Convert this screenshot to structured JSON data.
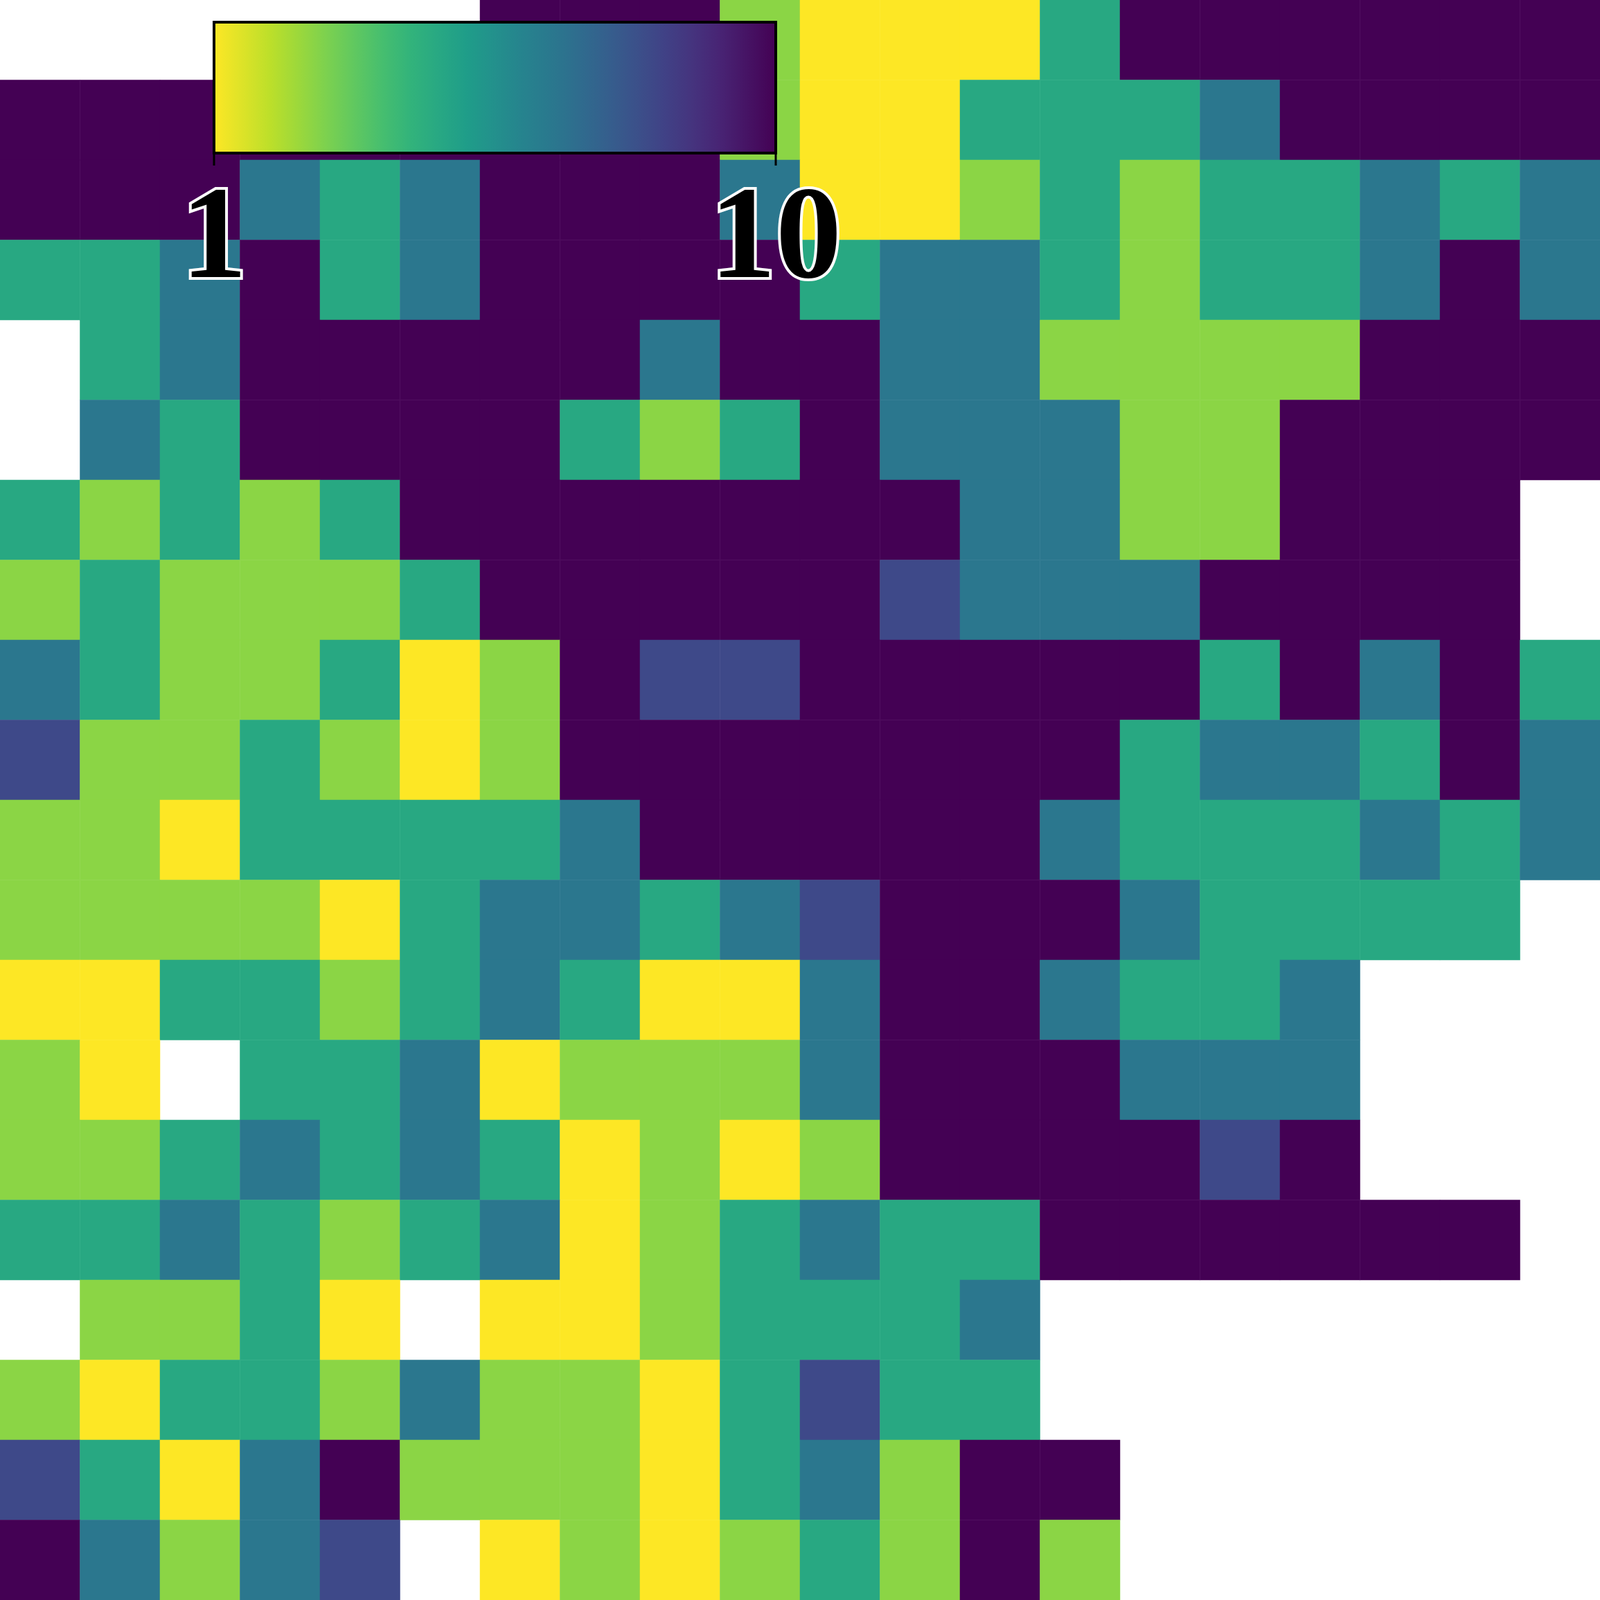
{
  "chart_data": {
    "type": "heatmap",
    "log": true,
    "tick_labels": false,
    "color_range": [
      1,
      10
    ],
    "color_ticks": [
      1,
      10
    ],
    "cells": [
      [
        null,
        null,
        null,
        null,
        null,
        null,
        10,
        10,
        10,
        1.5,
        1,
        1,
        1,
        2.5,
        10,
        10,
        10,
        10,
        10,
        10
      ],
      [
        10,
        10,
        10,
        10,
        10,
        10,
        10,
        10,
        10,
        1.5,
        1,
        1,
        2.5,
        2.5,
        2.5,
        4,
        10,
        10,
        10,
        10
      ],
      [
        10,
        10,
        10,
        4,
        2.5,
        4,
        10,
        10,
        10,
        4,
        1,
        1,
        1.5,
        2.5,
        1.5,
        2.5,
        2.5,
        4,
        2.5,
        4
      ],
      [
        2.5,
        2.5,
        4,
        10,
        2.5,
        4,
        10,
        10,
        10,
        10,
        2.5,
        4,
        4,
        2.5,
        1.5,
        2.5,
        2.5,
        4,
        10,
        4
      ],
      [
        null,
        2.5,
        4,
        10,
        10,
        10,
        10,
        10,
        4,
        10,
        10,
        4,
        4,
        1.5,
        1.5,
        1.5,
        1.5,
        10,
        10,
        10
      ],
      [
        null,
        4,
        2.5,
        10,
        10,
        10,
        10,
        2.5,
        1.5,
        2.5,
        10,
        4,
        4,
        4,
        1.5,
        1.5,
        10,
        10,
        10,
        10
      ],
      [
        2.5,
        1.5,
        2.5,
        1.5,
        2.5,
        10,
        10,
        10,
        10,
        10,
        10,
        10,
        4,
        4,
        1.5,
        1.5,
        10,
        10,
        10,
        null
      ],
      [
        1.5,
        2.5,
        1.5,
        1.5,
        1.5,
        2.5,
        10,
        10,
        10,
        10,
        10,
        6,
        4,
        4,
        4,
        10,
        10,
        10,
        10,
        null
      ],
      [
        4,
        2.5,
        1.5,
        1.5,
        2.5,
        1,
        1.5,
        10,
        6,
        6,
        10,
        10,
        10,
        10,
        10,
        2.5,
        10,
        4,
        10,
        2.5
      ],
      [
        6,
        1.5,
        1.5,
        2.5,
        1.5,
        1,
        1.5,
        10,
        10,
        10,
        10,
        10,
        10,
        10,
        2.5,
        4,
        4,
        2.5,
        10,
        4
      ],
      [
        1.5,
        1.5,
        1,
        2.5,
        2.5,
        2.5,
        2.5,
        4,
        10,
        10,
        10,
        10,
        10,
        4,
        2.5,
        2.5,
        2.5,
        4,
        2.5,
        4
      ],
      [
        1.5,
        1.5,
        1.5,
        1.5,
        1,
        2.5,
        4,
        4,
        2.5,
        4,
        6,
        10,
        10,
        10,
        4,
        2.5,
        2.5,
        2.5,
        2.5,
        null
      ],
      [
        1,
        1,
        2.5,
        2.5,
        1.5,
        2.5,
        4,
        2.5,
        1,
        1,
        4,
        10,
        10,
        4,
        2.5,
        2.5,
        4,
        null,
        null,
        null
      ],
      [
        1.5,
        1,
        null,
        2.5,
        2.5,
        4,
        1,
        1.5,
        1.5,
        1.5,
        4,
        10,
        10,
        10,
        4,
        4,
        4,
        null,
        null,
        null
      ],
      [
        1.5,
        1.5,
        2.5,
        4,
        2.5,
        4,
        2.5,
        1,
        1.5,
        1,
        1.5,
        10,
        10,
        10,
        10,
        6,
        10,
        null,
        null,
        null
      ],
      [
        2.5,
        2.5,
        4,
        2.5,
        1.5,
        2.5,
        4,
        1,
        1.5,
        2.5,
        4,
        2.5,
        2.5,
        10,
        10,
        10,
        10,
        10,
        10,
        null
      ],
      [
        null,
        1.5,
        1.5,
        2.5,
        1,
        null,
        1,
        1,
        1.5,
        2.5,
        2.5,
        2.5,
        4,
        null,
        null,
        null,
        null,
        null,
        null,
        null
      ],
      [
        1.5,
        1,
        2.5,
        2.5,
        1.5,
        4,
        1.5,
        1.5,
        1,
        2.5,
        6,
        2.5,
        2.5,
        null,
        null,
        null,
        null,
        null,
        null,
        null
      ],
      [
        6,
        2.5,
        1,
        4,
        10,
        1.5,
        1.5,
        1.5,
        1,
        2.5,
        4,
        1.5,
        10,
        10,
        null,
        null,
        null,
        null,
        null,
        null
      ],
      [
        10,
        4,
        1.5,
        4,
        6,
        null,
        1,
        1.5,
        1,
        1.5,
        2.5,
        1.5,
        10,
        1.5,
        null,
        null,
        null,
        null,
        null,
        null
      ]
    ]
  }
}
